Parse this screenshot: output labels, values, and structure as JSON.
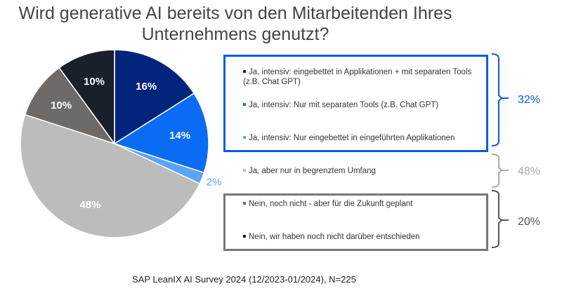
{
  "chart_data": {
    "type": "pie",
    "title": "Wird generative AI bereits von den Mitarbeitenden Ihres Unternehmens genutzt?",
    "slices": [
      {
        "label": "Ja, intensiv: eingebettet in Applikationen + mit separaten Tools (z.B. Chat GPT)",
        "value": 16,
        "data_label": "16%",
        "color": "#03247c"
      },
      {
        "label": "Ja, intensiv: Nur mit separaten Tools (z.B. Chat GPT)",
        "value": 14,
        "data_label": "14%",
        "color": "#0a6cf4"
      },
      {
        "label": "Ja, intensiv: Nur eingebettet in eingeführten Applikationen",
        "value": 2,
        "data_label": "2%",
        "color": "#5ba3f7"
      },
      {
        "label": "Ja, aber nur in begrenztem Umfang",
        "value": 48,
        "data_label": "48%",
        "color": "#bcbcbc"
      },
      {
        "label": "Nein, noch nicht - aber für die Zukunft geplant",
        "value": 10,
        "data_label": "10%",
        "color": "#6e6a68"
      },
      {
        "label": "Nein, wir haben noch nicht darüber entschieden",
        "value": 10,
        "data_label": "10%",
        "color": "#1a2029"
      }
    ],
    "groups": [
      {
        "total": "32%",
        "color": "#0a5ce0"
      },
      {
        "total": "48%",
        "color": "#aaaaaa"
      },
      {
        "total": "20%",
        "color": "#555555"
      }
    ],
    "legend": "right"
  },
  "source": "SAP LeanIX AI Survey 2024 (12/2023-01/2024), N=225"
}
